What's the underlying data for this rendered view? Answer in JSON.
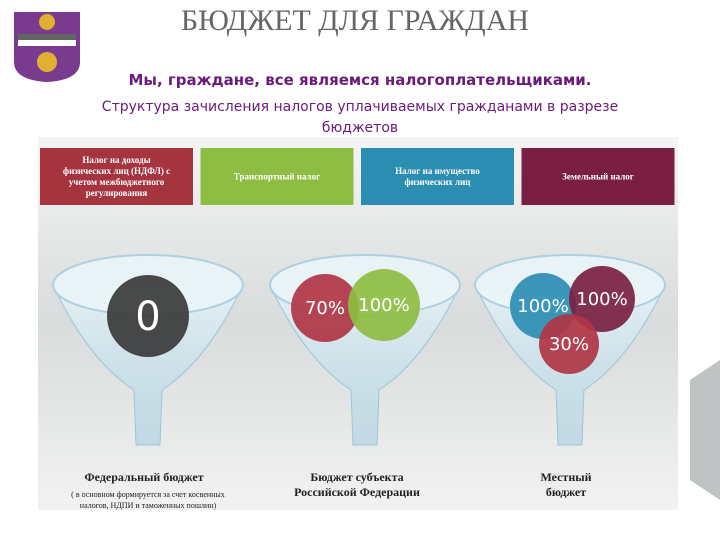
{
  "header": {
    "title": "БЮДЖЕТ ДЛЯ ГРАЖДАН",
    "subtitle": "Мы, граждане, все являемся налогоплательщиками.",
    "caption": [
      "Структура зачисления налогов уплачиваемых гражданами в разрезе",
      "бюджетов"
    ]
  },
  "taxes": [
    {
      "lines": [
        "Налог на доходы",
        "физических лиц (НДФЛ) с",
        "учетом межбюджетного",
        "регулирования"
      ]
    },
    {
      "lines": [
        "Транспортный налог"
      ]
    },
    {
      "lines": [
        "Налог на имущество",
        "физических лиц"
      ]
    },
    {
      "lines": [
        "Земельный налог"
      ]
    }
  ],
  "funnels": [
    {
      "circles": [
        "0"
      ],
      "label": [
        "Федеральный бюджет"
      ],
      "note": [
        "( в основном формируется за счет косвенных",
        "налогов, НДПИ и таможенных пошлин)"
      ]
    },
    {
      "circles": [
        "70%",
        "100%"
      ],
      "label": [
        "Бюджет субъекта",
        "Российской Федерации"
      ]
    },
    {
      "circles": [
        "100%",
        "100%",
        "30%"
      ],
      "label": [
        "Местный",
        "бюджет"
      ]
    }
  ]
}
